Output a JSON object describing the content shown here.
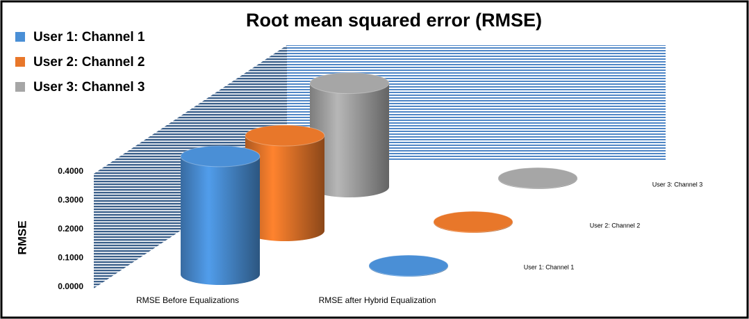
{
  "chart_data": {
    "type": "cylinder3d",
    "title": "Root mean squared error (RMSE)",
    "ylabel": "RMSE",
    "categories": [
      "RMSE Before Equalizations",
      "RMSE after Hybrid Equalization"
    ],
    "series": [
      {
        "name": "User 1: Channel 1",
        "color": "#4a8fd6",
        "values": [
          0.41,
          0.002
        ]
      },
      {
        "name": "User 2: Channel 2",
        "color": "#e8772a",
        "values": [
          0.33,
          0.002
        ]
      },
      {
        "name": "User 3: Channel 3",
        "color": "#a6a6a6",
        "values": [
          0.36,
          0.002
        ]
      }
    ],
    "ylim": [
      0,
      0.4
    ],
    "yticks": [
      {
        "value": 0,
        "label": "0.0000"
      },
      {
        "value": 0.1,
        "label": "0.1000"
      },
      {
        "value": 0.2,
        "label": "0.2000"
      },
      {
        "value": 0.3,
        "label": "0.3000"
      },
      {
        "value": 0.4,
        "label": "0.4000"
      }
    ]
  }
}
